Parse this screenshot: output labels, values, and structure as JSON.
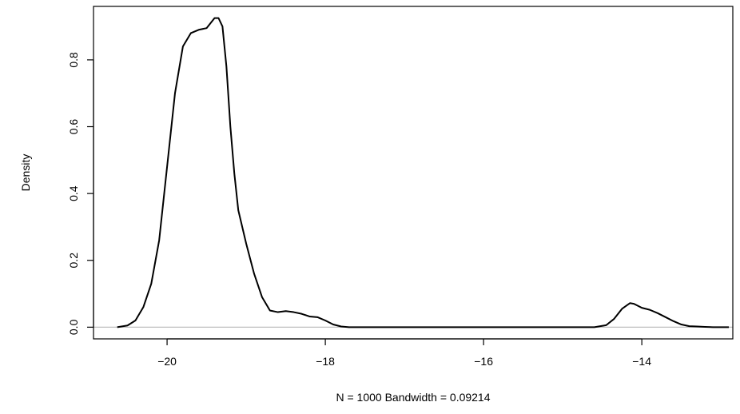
{
  "chart_data": {
    "type": "line",
    "title": "",
    "xlabel": "N = 1000   Bandwidth = 0.09214",
    "ylabel": "Density",
    "xlim": [
      -20.93,
      -12.85
    ],
    "ylim": [
      -0.035,
      0.96
    ],
    "x_ticks": [
      -20,
      -18,
      -16,
      -14
    ],
    "x_tick_labels": [
      "−20",
      "−18",
      "−16",
      "−14"
    ],
    "y_ticks": [
      0.0,
      0.2,
      0.4,
      0.6,
      0.8
    ],
    "y_tick_labels": [
      "0.0",
      "0.2",
      "0.4",
      "0.6",
      "0.8"
    ],
    "baseline": 0,
    "grid": false,
    "legend": "none",
    "colors": {
      "line": "#000000",
      "baseline": "#bebebe"
    },
    "series": [
      {
        "x": [
          -20.63,
          -20.5,
          -20.4,
          -20.3,
          -20.2,
          -20.1,
          -20.0,
          -19.9,
          -19.8,
          -19.7,
          -19.6,
          -19.5,
          -19.45,
          -19.4,
          -19.35,
          -19.3,
          -19.25,
          -19.2,
          -19.15,
          -19.1,
          -19.0,
          -18.9,
          -18.8,
          -18.7,
          -18.6,
          -18.5,
          -18.4,
          -18.3,
          -18.2,
          -18.1,
          -18.0,
          -17.9,
          -17.8,
          -17.7,
          -17.5,
          -17.0,
          -16.0,
          -15.0,
          -14.6,
          -14.45,
          -14.35,
          -14.25,
          -14.15,
          -14.1,
          -14.0,
          -13.9,
          -13.8,
          -13.7,
          -13.6,
          -13.5,
          -13.4,
          -13.3,
          -13.2,
          -13.1,
          -13.0,
          -12.9
        ],
        "y": [
          0.0,
          0.005,
          0.02,
          0.06,
          0.13,
          0.26,
          0.48,
          0.7,
          0.84,
          0.88,
          0.89,
          0.895,
          0.91,
          0.925,
          0.925,
          0.9,
          0.78,
          0.6,
          0.46,
          0.35,
          0.25,
          0.16,
          0.09,
          0.05,
          0.045,
          0.048,
          0.045,
          0.04,
          0.032,
          0.03,
          0.02,
          0.008,
          0.002,
          0.0,
          0.0,
          0.0,
          0.0,
          0.0,
          0.0,
          0.006,
          0.025,
          0.055,
          0.072,
          0.07,
          0.058,
          0.052,
          0.042,
          0.03,
          0.018,
          0.008,
          0.003,
          0.002,
          0.001,
          0.0,
          0.0,
          0.0
        ]
      }
    ]
  }
}
